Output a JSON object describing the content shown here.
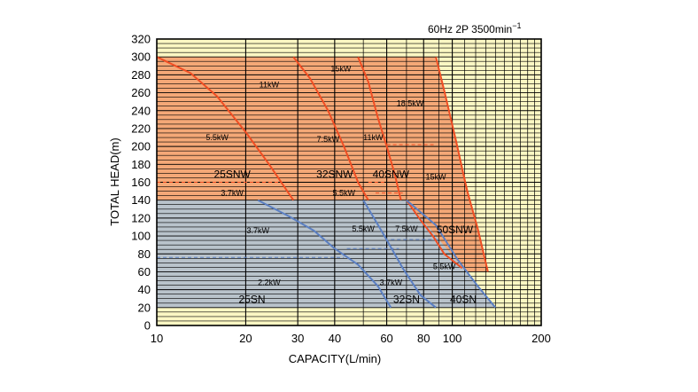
{
  "chart_data": {
    "type": "area",
    "note": "60Hz 2P 3500min",
    "note_sup": "−1",
    "xlabel": "CAPACITY(L/min)",
    "ylabel": "TOTAL HEAD(m)",
    "xscale": "log",
    "xlim": [
      10,
      200
    ],
    "ylim": [
      0,
      320
    ],
    "grid": true,
    "xticks": [
      10,
      20,
      30,
      40,
      60,
      80,
      100,
      200
    ],
    "xtick_labels": [
      "10",
      "20",
      "30",
      "40",
      "60",
      "80",
      "100",
      "200"
    ],
    "yticks": [
      0,
      20,
      40,
      60,
      80,
      100,
      120,
      140,
      160,
      180,
      200,
      220,
      240,
      260,
      280,
      300,
      320
    ],
    "ytick_labels": [
      "0",
      "20",
      "40",
      "60",
      "80",
      "100",
      "120",
      "140",
      "160",
      "180",
      "200",
      "220",
      "240",
      "260",
      "280",
      "300",
      "320"
    ],
    "colors": {
      "background": "#fbf7c3",
      "snw_area": "#f4a877",
      "sn_area": "#b9c3cb",
      "snw_curve": "#f04e23",
      "sn_curve": "#5b7fc2",
      "grid": "#000000",
      "dash": "#f04e23",
      "sn_dash": "#5b7fc2"
    },
    "regions": [
      {
        "name": "SNW",
        "points": [
          [
            10,
            300
          ],
          [
            88,
            300
          ],
          [
            132,
            60
          ],
          [
            50,
            60
          ],
          [
            45,
            140
          ],
          [
            10,
            140
          ]
        ]
      },
      {
        "name": "SN",
        "points": [
          [
            10,
            140
          ],
          [
            70,
            140
          ],
          [
            140,
            20
          ],
          [
            10,
            20
          ]
        ]
      }
    ],
    "curves": [
      {
        "group": "SNW",
        "points": [
          [
            10,
            300
          ],
          [
            13,
            282
          ],
          [
            16,
            256
          ],
          [
            20,
            216
          ],
          [
            24,
            180
          ],
          [
            29,
            140
          ]
        ]
      },
      {
        "group": "SNW",
        "points": [
          [
            29,
            300
          ],
          [
            33,
            276
          ],
          [
            38,
            240
          ],
          [
            43,
            200
          ],
          [
            48,
            160
          ],
          [
            52,
            140
          ]
        ]
      },
      {
        "group": "SNW",
        "points": [
          [
            48,
            300
          ],
          [
            52,
            272
          ],
          [
            56,
            232
          ],
          [
            60,
            200
          ],
          [
            64,
            168
          ],
          [
            67,
            140
          ]
        ]
      },
      {
        "group": "SNW",
        "points": [
          [
            88,
            300
          ],
          [
            94,
            262
          ],
          [
            103,
            206
          ],
          [
            112,
            152
          ],
          [
            122,
            108
          ],
          [
            132,
            60
          ]
        ]
      },
      {
        "group": "SNW",
        "points": [
          [
            70,
            140
          ],
          [
            78,
            118
          ],
          [
            86,
            100
          ],
          [
            94,
            80
          ],
          [
            108,
            64
          ]
        ]
      },
      {
        "group": "SN",
        "points": [
          [
            22,
            140
          ],
          [
            28,
            122
          ],
          [
            34,
            106
          ],
          [
            40,
            86
          ],
          [
            48,
            68
          ],
          [
            56,
            44
          ],
          [
            62,
            20
          ]
        ]
      },
      {
        "group": "SN",
        "points": [
          [
            50,
            140
          ],
          [
            58,
            104
          ],
          [
            68,
            64
          ],
          [
            78,
            34
          ],
          [
            88,
            20
          ]
        ]
      },
      {
        "group": "SN",
        "points": [
          [
            70,
            140
          ],
          [
            88,
            112
          ],
          [
            104,
            74
          ],
          [
            122,
            44
          ],
          [
            140,
            20
          ]
        ]
      }
    ],
    "dashed_lines": [
      {
        "group": "SNW",
        "points": [
          [
            10,
            160
          ],
          [
            26,
            160
          ]
        ]
      },
      {
        "group": "SNW",
        "points": [
          [
            52,
            160
          ],
          [
            59,
            160
          ]
        ]
      },
      {
        "group": "SNW",
        "points": [
          [
            60,
            202
          ],
          [
            88,
            202
          ]
        ]
      },
      {
        "group": "SNW",
        "points": [
          [
            55,
            148
          ],
          [
            68,
            148
          ]
        ]
      },
      {
        "group": "SN",
        "points": [
          [
            10,
            76
          ],
          [
            43,
            76
          ]
        ]
      },
      {
        "group": "SN",
        "points": [
          [
            44,
            86
          ],
          [
            66,
            86
          ]
        ]
      },
      {
        "group": "SN",
        "points": [
          [
            62,
            96
          ],
          [
            90,
            96
          ]
        ]
      }
    ],
    "model_labels": [
      {
        "text": "25SNW",
        "x": 18,
        "y": 169
      },
      {
        "text": "32SNW",
        "x": 40,
        "y": 169
      },
      {
        "text": "40SNW",
        "x": 62,
        "y": 169
      },
      {
        "text": "50SNW",
        "x": 102,
        "y": 107
      },
      {
        "text": "25SN",
        "x": 21,
        "y": 29
      },
      {
        "text": "32SN",
        "x": 70,
        "y": 29
      },
      {
        "text": "40SN",
        "x": 109,
        "y": 29
      }
    ],
    "power_labels": [
      {
        "text": "15kW",
        "x": 42,
        "y": 287
      },
      {
        "text": "11kW",
        "x": 24,
        "y": 269
      },
      {
        "text": "18.5kW",
        "x": 72,
        "y": 248
      },
      {
        "text": "5.5kW",
        "x": 16,
        "y": 210
      },
      {
        "text": "7.5kW",
        "x": 38,
        "y": 208
      },
      {
        "text": "11kW",
        "x": 54,
        "y": 210
      },
      {
        "text": "15kW",
        "x": 88,
        "y": 166
      },
      {
        "text": "3.7kW",
        "x": 18,
        "y": 148
      },
      {
        "text": "5.5kW",
        "x": 43,
        "y": 148
      },
      {
        "text": "3.7kW",
        "x": 22,
        "y": 106
      },
      {
        "text": "5.5kW",
        "x": 50,
        "y": 108
      },
      {
        "text": "7.5kW",
        "x": 70,
        "y": 108
      },
      {
        "text": "5.5kW",
        "x": 94,
        "y": 66
      },
      {
        "text": "2.2kW",
        "x": 24,
        "y": 48
      },
      {
        "text": "3.7kW",
        "x": 62,
        "y": 48
      }
    ]
  }
}
